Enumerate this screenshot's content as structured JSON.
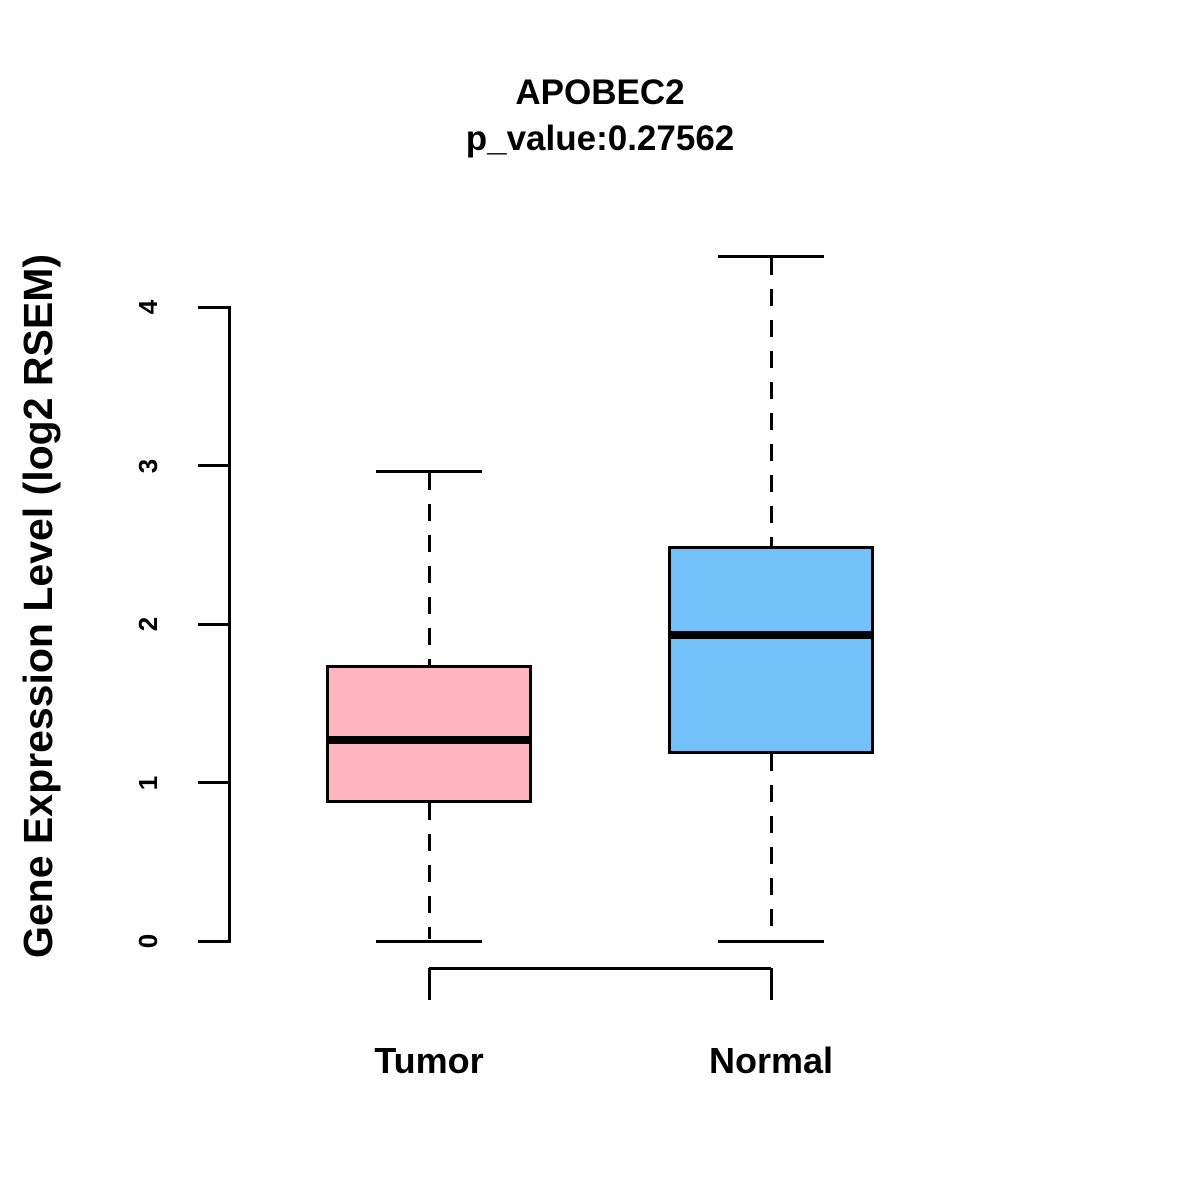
{
  "title": "APOBEC2",
  "subtitle": "p_value:0.27562",
  "chart_data": {
    "type": "boxplot",
    "title": "APOBEC2",
    "subtitle": "p_value:0.27562",
    "ylabel": "Gene Expression Level (log2 RSEM)",
    "xlabel": "",
    "categories": [
      "Tumor",
      "Normal"
    ],
    "yticks": [
      0,
      1,
      2,
      3,
      4
    ],
    "ylim": [
      0,
      4.35
    ],
    "grid": false,
    "legend": "none",
    "whisker_style": "dashed",
    "box_border_color": "#000000",
    "background_color": "#ffffff",
    "series": [
      {
        "name": "Tumor",
        "color": "#FFB6C1",
        "whisker_low": 0,
        "q1": 0.88,
        "median": 1.27,
        "q3": 1.73,
        "whisker_high": 2.96
      },
      {
        "name": "Normal",
        "color": "#74C0F8",
        "whisker_low": 0,
        "q1": 1.19,
        "median": 1.93,
        "q3": 2.48,
        "whisker_high": 4.32
      }
    ]
  }
}
